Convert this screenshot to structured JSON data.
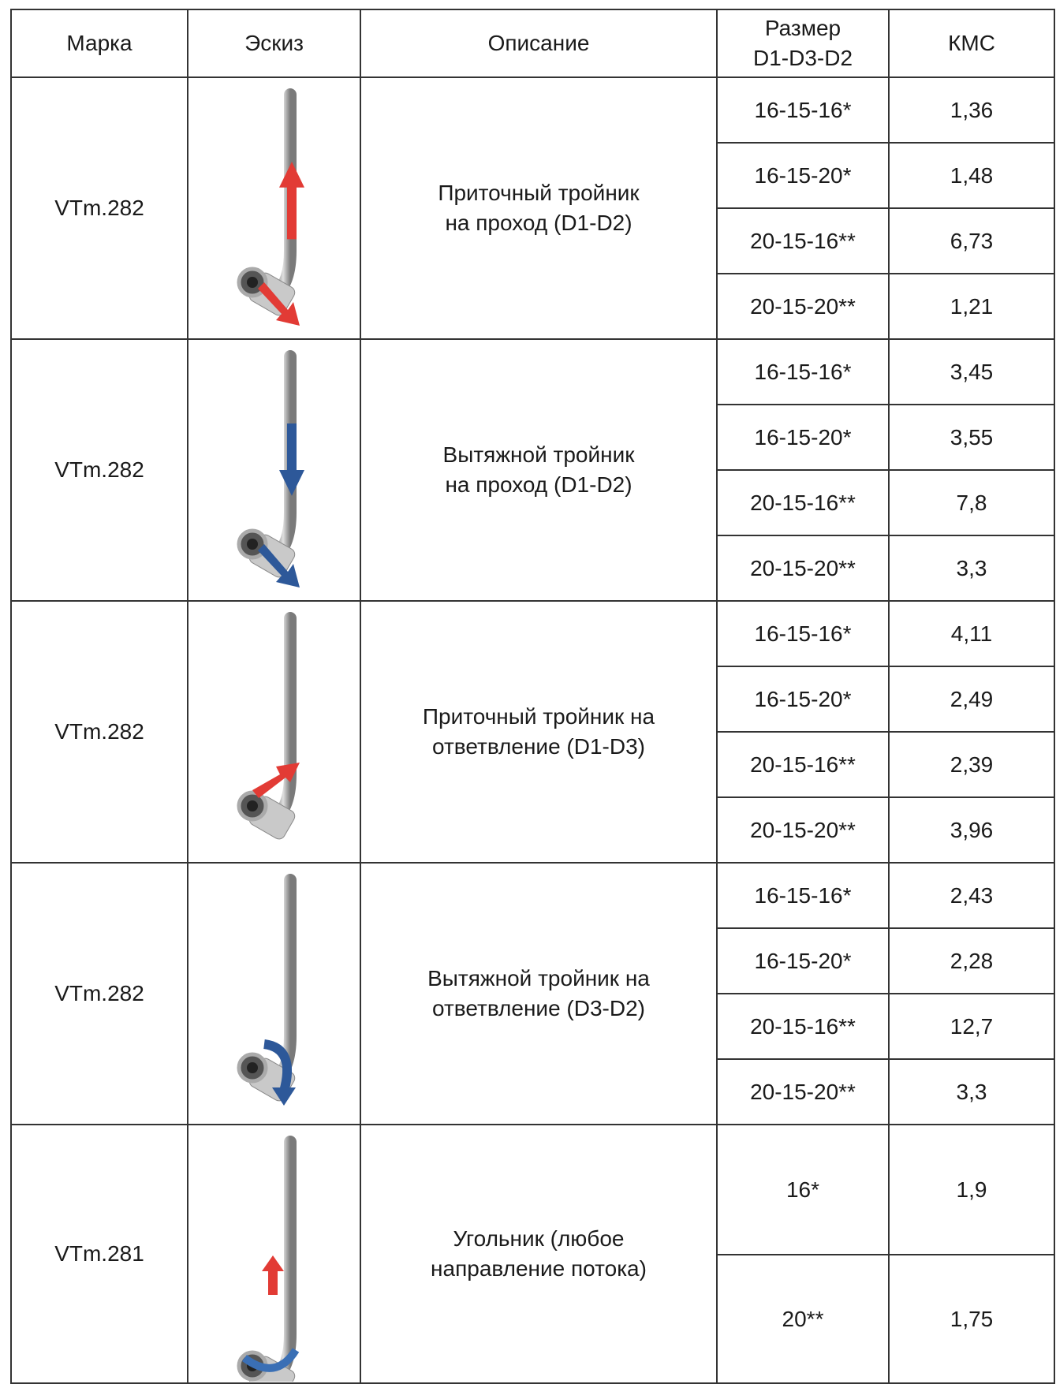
{
  "table": {
    "header": {
      "mark": "Марка",
      "sketch": "Эскиз",
      "description": "Описание",
      "size": [
        "Размер",
        "D1-D3-D2"
      ],
      "kms": "КМС"
    },
    "groups": [
      {
        "mark": "VTm.282",
        "description": [
          "Приточный тройник",
          "на проход (D1-D2)"
        ],
        "rows": [
          {
            "size": "16-15-16*",
            "kms": "1,36"
          },
          {
            "size": "16-15-20*",
            "kms": "1,48"
          },
          {
            "size": "20-15-16**",
            "kms": "6,73"
          },
          {
            "size": "20-15-20**",
            "kms": "1,21"
          }
        ]
      },
      {
        "mark": "VTm.282",
        "description": [
          "Вытяжной тройник",
          "на проход (D1-D2)"
        ],
        "rows": [
          {
            "size": "16-15-16*",
            "kms": "3,45"
          },
          {
            "size": "16-15-20*",
            "kms": "3,55"
          },
          {
            "size": "20-15-16**",
            "kms": "7,8"
          },
          {
            "size": "20-15-20**",
            "kms": "3,3"
          }
        ]
      },
      {
        "mark": "VTm.282",
        "description": [
          "Приточный тройник на",
          "ответвление (D1-D3)"
        ],
        "rows": [
          {
            "size": "16-15-16*",
            "kms": "4,11"
          },
          {
            "size": "16-15-20*",
            "kms": "2,49"
          },
          {
            "size": "20-15-16**",
            "kms": "2,39"
          },
          {
            "size": "20-15-20**",
            "kms": "3,96"
          }
        ]
      },
      {
        "mark": "VTm.282",
        "description": [
          "Вытяжной тройник на",
          "ответвление  (D3-D2)"
        ],
        "rows": [
          {
            "size": "16-15-16*",
            "kms": "2,43"
          },
          {
            "size": "16-15-20*",
            "kms": "2,28"
          },
          {
            "size": "20-15-16**",
            "kms": "12,7"
          },
          {
            "size": "20-15-20**",
            "kms": "3,3"
          }
        ]
      },
      {
        "mark": "VTm.281",
        "description": [
          "Угольник (любое",
          "направление потока)"
        ],
        "rows": [
          {
            "size": "16*",
            "kms": "1,9"
          },
          {
            "size": "20**",
            "kms": "1,75"
          }
        ]
      }
    ]
  }
}
